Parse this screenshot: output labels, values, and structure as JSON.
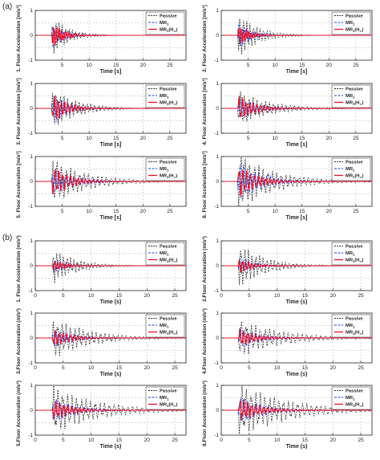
{
  "figure": {
    "panel_labels": [
      "(a)",
      "(b)"
    ]
  },
  "colors": {
    "passive": "#222222",
    "mr1": "#1f3fd6",
    "mr1_hinf": "#e8102a",
    "grid": "#b0b0b0",
    "axis": "#222222"
  },
  "legend": {
    "passive": "Passive",
    "mr1": "MR",
    "mr1_sub": "1",
    "mr1_hinf": "MR",
    "mr1_hinf_sub": "1",
    "mr1_hinf_paren": "(H",
    "mr1_hinf_inf": "∞",
    "mr1_hinf_close": ")"
  },
  "chart_data": [
    {
      "type": "line",
      "group": "a",
      "position": "top-left",
      "ylabel": "1. Floor Acceleration [m/s²]",
      "xlabel": "Time [s]",
      "xlim": [
        0,
        28
      ],
      "ylim": [
        -1,
        1
      ],
      "xticks": [
        5,
        10,
        15,
        20,
        25
      ],
      "yticks": [
        -1,
        0,
        1
      ],
      "grid": true,
      "legend_position": "top-right",
      "series": [
        {
          "name": "Passive",
          "amplitude": 0.65,
          "onset": 3.0,
          "decay": 0.35,
          "frequency": 1.6
        },
        {
          "name": "MR1",
          "amplitude": 0.45,
          "onset": 3.0,
          "decay": 0.45,
          "frequency": 2.0
        },
        {
          "name": "MR1(H∞)",
          "amplitude": 0.4,
          "onset": 3.0,
          "decay": 0.5,
          "frequency": 2.1
        }
      ]
    },
    {
      "type": "line",
      "group": "a",
      "position": "top-right",
      "ylabel": "2. Floor Acceleration [m/s²]",
      "xlabel": "Time [s]",
      "xlim": [
        0,
        28
      ],
      "ylim": [
        -1,
        1
      ],
      "xticks": [
        5,
        10,
        15,
        20,
        25
      ],
      "yticks": [
        -1,
        0,
        1
      ],
      "grid": true,
      "legend_position": "top-right",
      "series": [
        {
          "name": "Passive",
          "amplitude": 0.75,
          "onset": 3.0,
          "decay": 0.3,
          "frequency": 1.6
        },
        {
          "name": "MR1",
          "amplitude": 0.45,
          "onset": 3.0,
          "decay": 0.45,
          "frequency": 2.0
        },
        {
          "name": "MR1(H∞)",
          "amplitude": 0.35,
          "onset": 3.0,
          "decay": 0.5,
          "frequency": 2.1
        }
      ]
    },
    {
      "type": "line",
      "group": "a",
      "position": "middle-left",
      "ylabel": "3. Floor Acceleration [m/s²]",
      "xlabel": "Time [s]",
      "xlim": [
        0,
        28
      ],
      "ylim": [
        -1,
        1
      ],
      "xticks": [
        5,
        10,
        15,
        20,
        25
      ],
      "yticks": [
        -1,
        0,
        1
      ],
      "grid": true,
      "legend_position": "top-right",
      "series": [
        {
          "name": "Passive",
          "amplitude": 0.65,
          "onset": 3.0,
          "decay": 0.22,
          "frequency": 1.4
        },
        {
          "name": "MR1",
          "amplitude": 0.55,
          "onset": 3.0,
          "decay": 0.35,
          "frequency": 1.6
        },
        {
          "name": "MR1(H∞)",
          "amplitude": 0.45,
          "onset": 3.0,
          "decay": 0.35,
          "frequency": 1.6
        }
      ]
    },
    {
      "type": "line",
      "group": "a",
      "position": "middle-right",
      "ylabel": "4. Floor Acceleration [m/s²]",
      "xlabel": "Time [s]",
      "xlim": [
        0,
        28
      ],
      "ylim": [
        -1,
        1
      ],
      "xticks": [
        5,
        10,
        15,
        20,
        25
      ],
      "yticks": [
        -1,
        0,
        1
      ],
      "grid": true,
      "legend_position": "top-right",
      "series": [
        {
          "name": "Passive",
          "amplitude": 0.55,
          "onset": 3.0,
          "decay": 0.18,
          "frequency": 1.3
        },
        {
          "name": "MR1",
          "amplitude": 0.45,
          "onset": 3.0,
          "decay": 0.3,
          "frequency": 1.5
        },
        {
          "name": "MR1(H∞)",
          "amplitude": 0.4,
          "onset": 3.0,
          "decay": 0.3,
          "frequency": 1.5
        }
      ]
    },
    {
      "type": "line",
      "group": "a",
      "position": "bottom-left",
      "ylabel": "5. Floor Acceleration [m/s²]",
      "xlabel": "Time [s]",
      "xlim": [
        0,
        28
      ],
      "ylim": [
        -1,
        1
      ],
      "xticks": [
        5,
        10,
        15,
        20,
        25
      ],
      "yticks": [
        -1,
        0,
        1
      ],
      "grid": true,
      "legend_position": "top-right",
      "series": [
        {
          "name": "Passive",
          "amplitude": 0.7,
          "onset": 3.0,
          "decay": 0.16,
          "frequency": 1.2
        },
        {
          "name": "MR1",
          "amplitude": 0.5,
          "onset": 3.0,
          "decay": 0.28,
          "frequency": 1.4
        },
        {
          "name": "MR1(H∞)",
          "amplitude": 0.45,
          "onset": 3.0,
          "decay": 0.28,
          "frequency": 1.4
        }
      ]
    },
    {
      "type": "line",
      "group": "a",
      "position": "bottom-right",
      "ylabel": "6. Floor Acceleration [m/s²]",
      "xlabel": "Time [s]",
      "xlim": [
        0,
        28
      ],
      "ylim": [
        -1,
        1
      ],
      "xticks": [
        5,
        10,
        15,
        20,
        25
      ],
      "yticks": [
        -1,
        0,
        1
      ],
      "grid": true,
      "legend_position": "top-right",
      "series": [
        {
          "name": "Passive",
          "amplitude": 0.85,
          "onset": 3.0,
          "decay": 0.15,
          "frequency": 1.2
        },
        {
          "name": "MR1",
          "amplitude": 0.7,
          "onset": 3.0,
          "decay": 0.25,
          "frequency": 1.4
        },
        {
          "name": "MR1(H∞)",
          "amplitude": 0.5,
          "onset": 3.0,
          "decay": 0.28,
          "frequency": 1.4
        }
      ]
    },
    {
      "type": "line",
      "group": "b",
      "position": "top-left",
      "ylabel": "1. Floor Acceleration (m/s²)",
      "xlabel": "Time (s)",
      "xlim": [
        0,
        27
      ],
      "ylim": [
        -1,
        1
      ],
      "xticks": [
        0,
        5,
        10,
        15,
        20,
        25
      ],
      "yticks": [
        -1,
        0,
        1
      ],
      "grid": true,
      "legend_position": "top-right",
      "series": [
        {
          "name": "Passive",
          "amplitude": 0.55,
          "onset": 3.0,
          "decay": 0.25,
          "frequency": 1.6
        },
        {
          "name": "MR1",
          "amplitude": 0.25,
          "onset": 3.0,
          "decay": 0.4,
          "frequency": 2.0
        },
        {
          "name": "MR1(H∞)",
          "amplitude": 0.2,
          "onset": 3.0,
          "decay": 0.45,
          "frequency": 2.0
        }
      ]
    },
    {
      "type": "line",
      "group": "b",
      "position": "top-right",
      "ylabel": "2.Floor Acceleration (m/s²)",
      "xlabel": "Time (s)",
      "xlim": [
        0,
        27
      ],
      "ylim": [
        -1,
        1
      ],
      "xticks": [
        0,
        5,
        10,
        15,
        20,
        25
      ],
      "yticks": [
        -1,
        0,
        1
      ],
      "grid": true,
      "legend_position": "top-right",
      "series": [
        {
          "name": "Passive",
          "amplitude": 0.7,
          "onset": 3.0,
          "decay": 0.22,
          "frequency": 1.5
        },
        {
          "name": "MR1",
          "amplitude": 0.3,
          "onset": 3.0,
          "decay": 0.38,
          "frequency": 1.8
        },
        {
          "name": "MR1(H∞)",
          "amplitude": 0.25,
          "onset": 3.0,
          "decay": 0.42,
          "frequency": 1.8
        }
      ]
    },
    {
      "type": "line",
      "group": "b",
      "position": "middle-left",
      "ylabel": "3.Floor Acceleration (m/s²)",
      "xlabel": "Time (s)",
      "xlim": [
        0,
        27
      ],
      "ylim": [
        -1,
        1
      ],
      "xticks": [
        0,
        5,
        10,
        15,
        20,
        25
      ],
      "yticks": [
        -1,
        0,
        1
      ],
      "grid": true,
      "legend_position": "top-right",
      "series": [
        {
          "name": "Passive",
          "amplitude": 0.65,
          "onset": 3.0,
          "decay": 0.16,
          "frequency": 1.3
        },
        {
          "name": "MR1",
          "amplitude": 0.35,
          "onset": 3.0,
          "decay": 0.3,
          "frequency": 1.5
        },
        {
          "name": "MR1(H∞)",
          "amplitude": 0.3,
          "onset": 3.0,
          "decay": 0.32,
          "frequency": 1.5
        }
      ]
    },
    {
      "type": "line",
      "group": "b",
      "position": "middle-right",
      "ylabel": "4.Floor Acceleration (m/s²)",
      "xlabel": "Time (s)",
      "xlim": [
        0,
        27
      ],
      "ylim": [
        -1,
        1
      ],
      "xticks": [
        0,
        5,
        10,
        15,
        20,
        25
      ],
      "yticks": [
        -1,
        0,
        1
      ],
      "grid": true,
      "legend_position": "top-right",
      "series": [
        {
          "name": "Passive",
          "amplitude": 0.6,
          "onset": 3.0,
          "decay": 0.14,
          "frequency": 1.2
        },
        {
          "name": "MR1",
          "amplitude": 0.35,
          "onset": 3.0,
          "decay": 0.28,
          "frequency": 1.4
        },
        {
          "name": "MR1(H∞)",
          "amplitude": 0.3,
          "onset": 3.0,
          "decay": 0.3,
          "frequency": 1.4
        }
      ]
    },
    {
      "type": "line",
      "group": "b",
      "position": "bottom-left",
      "ylabel": "5.Floor Acceleration (m/s²)",
      "xlabel": "Time (s)",
      "xlim": [
        0,
        27
      ],
      "ylim": [
        -1,
        1
      ],
      "xticks": [
        0,
        5,
        10,
        15,
        20,
        25
      ],
      "yticks": [
        -1,
        0,
        1
      ],
      "grid": true,
      "legend_position": "top-right",
      "series": [
        {
          "name": "Passive",
          "amplitude": 0.75,
          "onset": 3.0,
          "decay": 0.13,
          "frequency": 1.2
        },
        {
          "name": "MR1",
          "amplitude": 0.4,
          "onset": 3.0,
          "decay": 0.26,
          "frequency": 1.4
        },
        {
          "name": "MR1(H∞)",
          "amplitude": 0.35,
          "onset": 3.0,
          "decay": 0.28,
          "frequency": 1.4
        }
      ]
    },
    {
      "type": "line",
      "group": "b",
      "position": "bottom-right",
      "ylabel": "6.Floor Acceleration (m/s²)",
      "xlabel": "Time (s)",
      "xlim": [
        0,
        27
      ],
      "ylim": [
        -1,
        1
      ],
      "xticks": [
        0,
        5,
        10,
        15,
        20,
        25
      ],
      "yticks": [
        -1,
        0,
        1
      ],
      "grid": true,
      "legend_position": "top-right",
      "series": [
        {
          "name": "Passive",
          "amplitude": 0.85,
          "onset": 3.0,
          "decay": 0.12,
          "frequency": 1.2
        },
        {
          "name": "MR1",
          "amplitude": 0.45,
          "onset": 3.0,
          "decay": 0.24,
          "frequency": 1.4
        },
        {
          "name": "MR1(H∞)",
          "amplitude": 0.4,
          "onset": 3.0,
          "decay": 0.26,
          "frequency": 1.4
        }
      ]
    }
  ]
}
